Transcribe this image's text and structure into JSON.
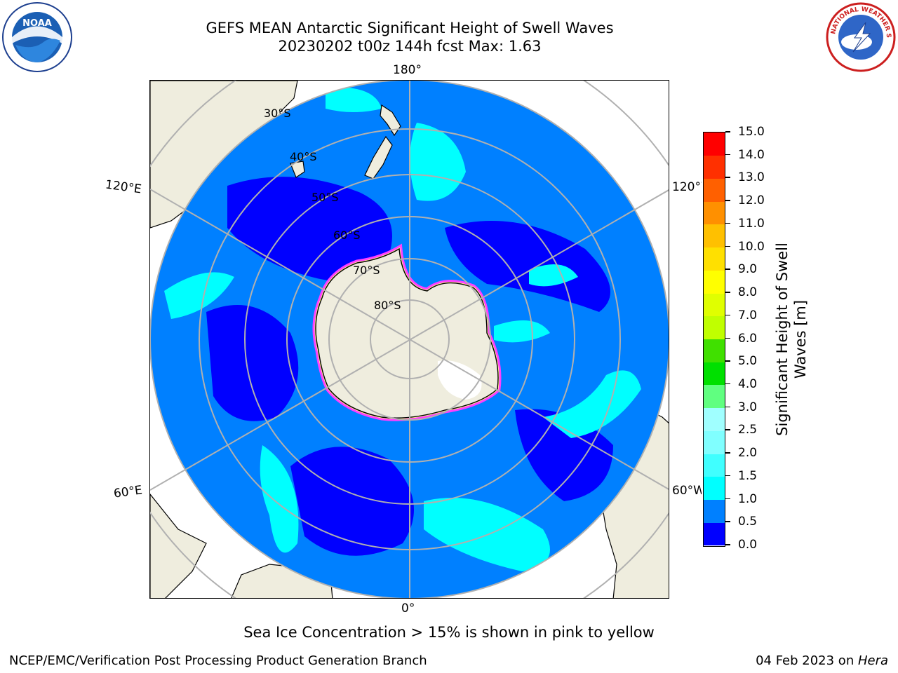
{
  "title_line1": "GEFS MEAN Antarctic Significant Height of Swell Waves",
  "title_line2": "20230202 t00z 144h fcst   Max: 1.63",
  "subtitle": "Sea Ice Concentration > 15% is shown in pink to yellow",
  "footer_left": "NCEP/EMC/Verification Post Processing Product Generation Branch",
  "footer_right_date": "04 Feb 2023 on ",
  "footer_right_host": "Hera",
  "longitude_labels": {
    "top": "180°",
    "bottom": "0°",
    "left_upper": "120°E",
    "left_lower": "60°E",
    "right_upper": "120°W",
    "right_lower": "60°W"
  },
  "latitude_labels": [
    "30°S",
    "40°S",
    "50°S",
    "60°S",
    "70°S",
    "80°S"
  ],
  "colorbar": {
    "label_line1": "Significant Height of Swell",
    "label_line2": "Waves [m]",
    "ticks": [
      "0.0",
      "0.5",
      "1.0",
      "1.5",
      "2.0",
      "2.5",
      "3.0",
      "4.0",
      "5.0",
      "6.0",
      "7.0",
      "8.0",
      "9.0",
      "10.0",
      "11.0",
      "12.0",
      "13.0",
      "14.0",
      "15.0"
    ],
    "colors": [
      "#0000ff",
      "#0080ff",
      "#00ffff",
      "#40ffff",
      "#80ffff",
      "#a0ffff",
      "#60ff80",
      "#00e000",
      "#40e000",
      "#c0ff00",
      "#e0ff00",
      "#ffff00",
      "#ffe000",
      "#ffc000",
      "#ff9000",
      "#ff6000",
      "#ff3000",
      "#ff0000"
    ]
  },
  "map_colors": {
    "land": "#efedde",
    "ocean_low": "#0000ff",
    "ocean_mid": "#0080ff",
    "ocean_high": "#00ffff",
    "sea_ice": "#ff40ff",
    "grid": "#b0b0b0"
  },
  "noaa_logo_text": "NOAA",
  "nws_logo_text": "NATIONAL WEATHER SERVICE"
}
